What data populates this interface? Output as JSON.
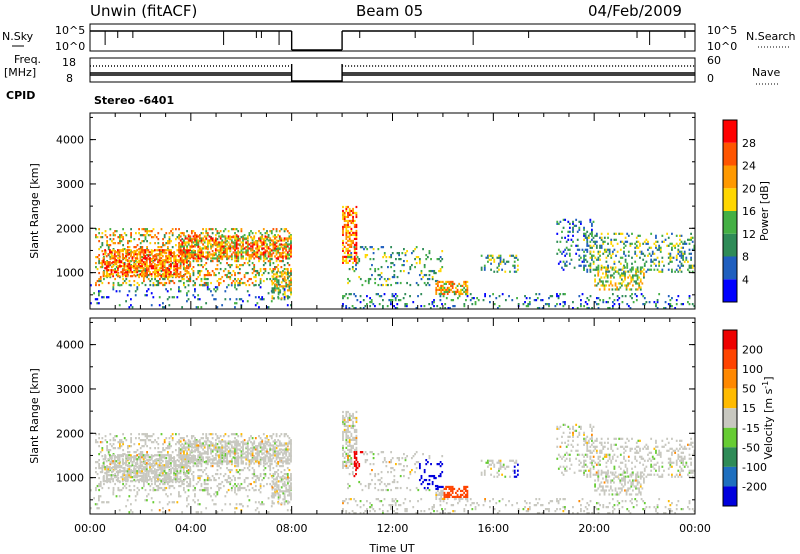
{
  "header": {
    "station": "Unwin (fitACF)",
    "beam": "Beam 05",
    "date": "04/Feb/2009"
  },
  "side_labels": {
    "nsky": "N.Sky",
    "nsearch": "N.Search",
    "freq": "Freq.",
    "mhz": "[MHz]",
    "nave": "Nave",
    "cpid": "CPID"
  },
  "cpid_value": "Stereo -6401",
  "time_axis_label": "Time UT",
  "colors": {
    "power": [
      "#0000ff",
      "#1f5fbf",
      "#2e8b57",
      "#44b044",
      "#ffd700",
      "#ff9900",
      "#ff5500",
      "#ff0000"
    ],
    "velocity": [
      "#0000dd",
      "#1e6fbf",
      "#2e8b57",
      "#66cc33",
      "#c8c8c0",
      "#ffbb00",
      "#ff8800",
      "#ff4400",
      "#ee0000"
    ]
  },
  "chart_data": [
    {
      "type": "line",
      "name": "noise",
      "left_ticks": [
        "10^5",
        "10^0"
      ],
      "right_ticks": [
        "10^5",
        "10^0"
      ],
      "x_range": [
        "00:00",
        "24:00"
      ],
      "gap": [
        "08:00",
        "10:00"
      ],
      "left_label": "N.Sky",
      "right_label": "N.Search"
    },
    {
      "type": "line",
      "name": "frequency-nave",
      "left_ticks": [
        "18",
        "8"
      ],
      "right_ticks": [
        "60",
        "0"
      ],
      "left_label": "Freq. [MHz]",
      "right_label": "Nave"
    },
    {
      "type": "heatmap",
      "name": "power",
      "ylabel": "Slant Range [km]",
      "xlabel": "",
      "y_ticks": [
        "1000",
        "2000",
        "3000",
        "4000"
      ],
      "ylim": [
        180,
        4600
      ],
      "x_ticks": [
        "00:00",
        "04:00",
        "08:00",
        "12:00",
        "16:00",
        "20:00",
        "00:00"
      ],
      "xlim": [
        0,
        24
      ],
      "colorbar": {
        "label": "Power [dB]",
        "ticks": [
          "4",
          "8",
          "12",
          "16",
          "20",
          "24",
          "28"
        ],
        "range": [
          0,
          32
        ]
      }
    },
    {
      "type": "heatmap",
      "name": "velocity",
      "ylabel": "Slant Range [km]",
      "xlabel": "Time UT",
      "y_ticks": [
        "1000",
        "2000",
        "3000",
        "4000"
      ],
      "ylim": [
        180,
        4600
      ],
      "x_ticks": [
        "00:00",
        "04:00",
        "08:00",
        "12:00",
        "16:00",
        "20:00",
        "00:00"
      ],
      "xlim": [
        0,
        24
      ],
      "colorbar": {
        "label": "Velocity [m s-1]",
        "ticks": [
          "200",
          "100",
          "50",
          "15",
          "-15",
          "-50",
          "-100",
          "-200"
        ]
      }
    }
  ]
}
